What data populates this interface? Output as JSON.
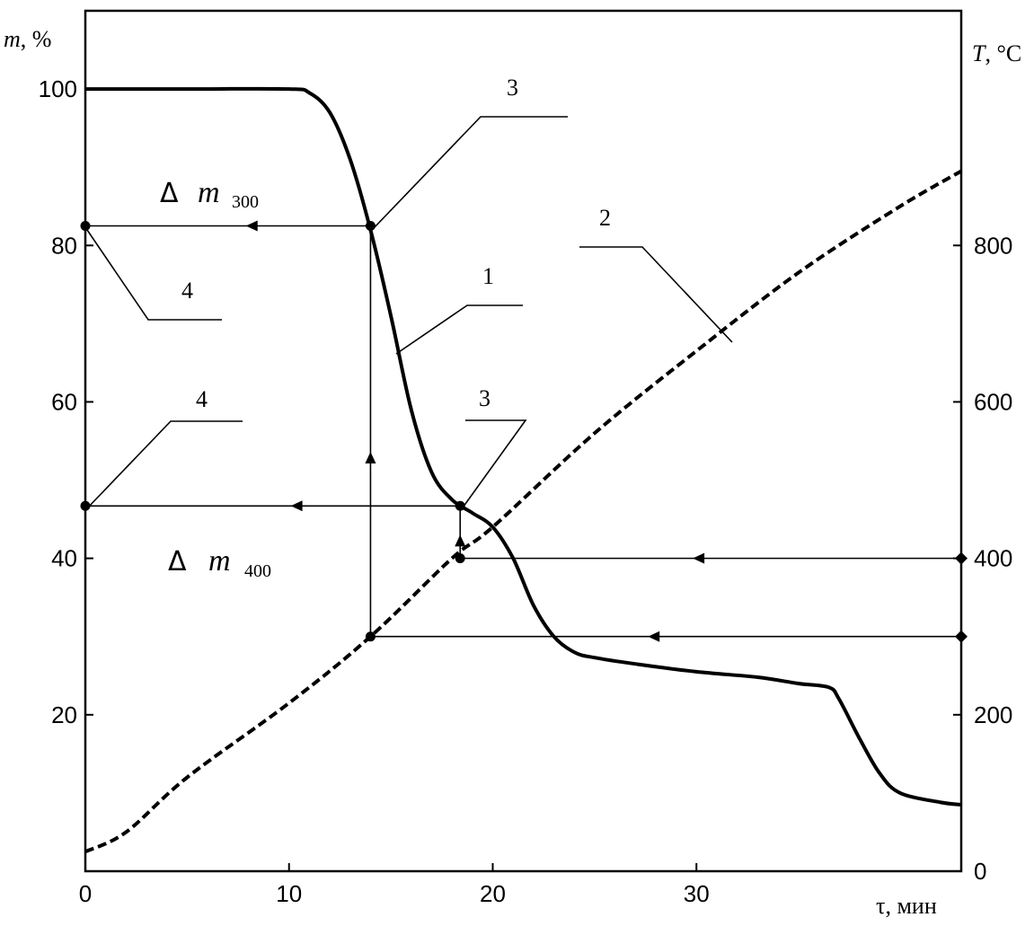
{
  "chart_data": {
    "type": "line",
    "xlabel": "τ, мин",
    "ylabel_left": {
      "symbol": "m",
      "unit": ", %"
    },
    "ylabel_right": {
      "symbol": "T",
      "unit": ", °C"
    },
    "xlim": [
      0,
      43
    ],
    "ylim_left": [
      0,
      110
    ],
    "ylim_right": [
      0,
      1100
    ],
    "x_ticks": [
      0,
      10,
      20,
      30
    ],
    "y_ticks_left": [
      20,
      40,
      60,
      80,
      100
    ],
    "y_ticks_right": [
      0,
      200,
      400,
      600,
      800
    ],
    "series": [
      {
        "name": "1",
        "axis": "left",
        "style": "solid",
        "x": [
          0,
          5,
          10,
          11,
          12,
          13,
          14,
          15,
          16,
          17,
          18,
          19,
          20,
          21,
          22,
          23,
          24,
          25,
          27,
          30,
          33,
          35,
          36.5,
          37,
          38,
          39,
          40,
          42,
          43
        ],
        "y": [
          100,
          100,
          100,
          99.5,
          97,
          91,
          82,
          71,
          59,
          51,
          47.5,
          45.8,
          44,
          40,
          34,
          30,
          28,
          27.3,
          26.5,
          25.5,
          24.8,
          24,
          23.5,
          22,
          17,
          12.5,
          10,
          8.8,
          8.5
        ]
      },
      {
        "name": "2",
        "axis": "right",
        "style": "dashed",
        "x": [
          0,
          2,
          5,
          10,
          14,
          18,
          20,
          25,
          30,
          35,
          40,
          43
        ],
        "y": [
          25,
          50,
          120,
          215,
          300,
          400,
          440,
          560,
          665,
          765,
          850,
          895
        ]
      }
    ],
    "guides": [
      {
        "label": "Δ m300",
        "temperature": 300,
        "time": 14,
        "mass": 82.5
      },
      {
        "label": "Δ m400",
        "temperature": 400,
        "time": 18.4,
        "mass": 46.7
      }
    ],
    "annotations": {
      "delta_symbol": "Δ",
      "mass_symbol": "m",
      "m300_sub": "300",
      "m400_sub": "400",
      "c1": "1",
      "c2": "2",
      "c3a": "3",
      "c3b": "3",
      "c4a": "4",
      "c4b": "4"
    }
  }
}
